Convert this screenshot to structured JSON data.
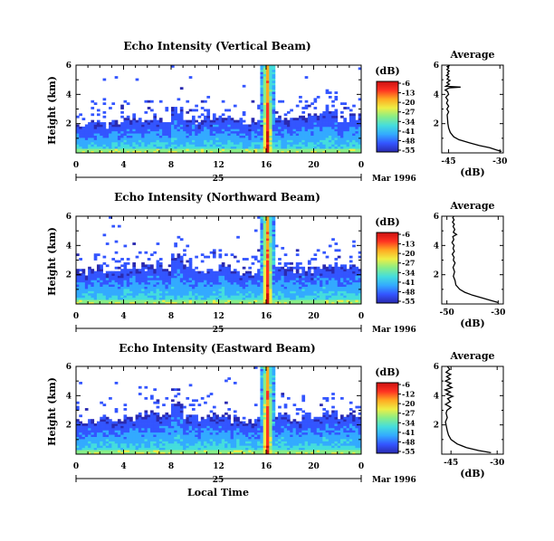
{
  "colormap": [
    "#2a2ab0",
    "#3355ff",
    "#33aaff",
    "#44dddd",
    "#88ee88",
    "#eeee44",
    "#ffaa22",
    "#ff3322",
    "#cc1111"
  ],
  "x_axis": {
    "label": "Local Time",
    "date_label": "Mar 1996",
    "day_label": "25"
  },
  "chart_data": [
    {
      "type": "heatmap",
      "title": "Echo Intensity (Vertical Beam)",
      "ylabel": "Height (km)",
      "xlim": [
        0,
        24
      ],
      "ylim": [
        0,
        6
      ],
      "xticks": [
        "0",
        "4",
        "8",
        "12",
        "16",
        "20",
        "0"
      ],
      "yticks": [
        2,
        4,
        6
      ],
      "colorbar": {
        "unit": "(dB)",
        "ticks": [
          "-6",
          "-13",
          "-20",
          "-27",
          "-34",
          "-41",
          "-48",
          "-55"
        ],
        "range": [
          -55,
          -6
        ]
      },
      "profile": {
        "type": "line",
        "title": "Average",
        "xlabel": "(dB)",
        "xticks": [
          "-45",
          "-30"
        ],
        "xlim": [
          -47,
          -29
        ],
        "ylim": [
          0,
          6
        ],
        "yticks": [
          2,
          4,
          6
        ],
        "x": [
          -29.5,
          -31,
          -33,
          -36,
          -39,
          -42,
          -43.5,
          -44.5,
          -45,
          -45.2,
          -45.3,
          -45.4,
          -45,
          -45.5,
          -45,
          -45.6,
          -45.2,
          -45.8,
          -45,
          -45.3,
          -46,
          -44.8,
          -41.5,
          -45.8,
          -44.8,
          -45.5,
          -44.6,
          -45.4,
          -44.9,
          -45.6,
          -45,
          -45.3,
          -44.8,
          -45.5,
          -45,
          -45.4,
          -44.9,
          -45.2
        ],
        "y": [
          0.1,
          0.2,
          0.35,
          0.5,
          0.7,
          0.9,
          1.1,
          1.4,
          1.7,
          2.0,
          2.3,
          2.6,
          2.8,
          3.0,
          3.2,
          3.4,
          3.6,
          3.8,
          4.0,
          4.2,
          4.3,
          4.45,
          4.5,
          4.55,
          4.7,
          4.8,
          4.95,
          5.05,
          5.2,
          5.3,
          5.4,
          5.5,
          5.6,
          5.7,
          5.8,
          5.9,
          5.95,
          6.0
        ]
      },
      "layer_top": [
        1.9,
        2.0,
        1.9,
        2.1,
        2.4,
        2.2,
        2.3,
        2.2,
        3.0,
        2.4,
        2.2,
        2.3,
        2.4,
        2.2,
        2.1,
        2.2,
        2.5,
        2.3,
        2.6,
        2.5,
        2.6,
        2.8,
        2.3,
        2.5
      ],
      "spike": {
        "x": 16.1,
        "width": 0.45,
        "peak": -8
      }
    },
    {
      "type": "heatmap",
      "title": "Echo Intensity (Northward Beam)",
      "ylabel": "Height (km)",
      "xlim": [
        0,
        24
      ],
      "ylim": [
        0,
        6
      ],
      "xticks": [
        "0",
        "4",
        "8",
        "12",
        "16",
        "20",
        "0"
      ],
      "yticks": [
        2,
        4,
        6
      ],
      "colorbar": {
        "unit": "(dB)",
        "ticks": [
          "-6",
          "-13",
          "-20",
          "-27",
          "-34",
          "-41",
          "-48",
          "-55"
        ],
        "range": [
          -55,
          -6
        ]
      },
      "profile": {
        "type": "line",
        "title": "Average",
        "xlabel": "(dB)",
        "xticks": [
          "-50",
          "-30"
        ],
        "xlim": [
          -52,
          -28
        ],
        "ylim": [
          0,
          6
        ],
        "yticks": [
          2,
          4,
          6
        ],
        "x": [
          -30,
          -33,
          -36,
          -40,
          -43,
          -45,
          -46.5,
          -46.8,
          -47.5,
          -47,
          -47.6,
          -46.8,
          -47.5,
          -47.2,
          -47.9,
          -47.1,
          -47.6,
          -47.2,
          -48,
          -47.3,
          -47.7,
          -46.2,
          -47.5,
          -46.9,
          -47.6,
          -47.1,
          -47.8,
          -47.2,
          -47.7,
          -47.3
        ],
        "y": [
          0.1,
          0.25,
          0.4,
          0.6,
          0.8,
          1.0,
          1.3,
          1.6,
          1.9,
          2.2,
          2.5,
          2.8,
          3.0,
          3.2,
          3.4,
          3.6,
          3.8,
          4.0,
          4.2,
          4.4,
          4.6,
          4.75,
          4.9,
          5.1,
          5.3,
          5.45,
          5.6,
          5.75,
          5.9,
          6.0
        ]
      },
      "layer_top": [
        2.1,
        2.4,
        2.3,
        2.1,
        2.6,
        2.4,
        2.6,
        2.5,
        3.3,
        2.6,
        2.3,
        2.5,
        2.6,
        2.2,
        2.1,
        2.2,
        2.6,
        2.4,
        2.3,
        2.4,
        2.5,
        2.6,
        2.4,
        2.5
      ],
      "spike": {
        "x": 16.1,
        "width": 0.45,
        "peak": -8
      }
    },
    {
      "type": "heatmap",
      "title": "Echo Intensity (Eastward Beam)",
      "ylabel": "Height (km)",
      "xlim": [
        0,
        24
      ],
      "ylim": [
        0,
        6
      ],
      "xticks": [
        "0",
        "4",
        "8",
        "12",
        "16",
        "20",
        "0"
      ],
      "yticks": [
        2,
        4,
        6
      ],
      "colorbar": {
        "unit": "(dB)",
        "ticks": [
          "-6",
          "-12",
          "-20",
          "-27",
          "-34",
          "-41",
          "-48",
          "-55"
        ],
        "range": [
          -55,
          -6
        ]
      },
      "profile": {
        "type": "line",
        "title": "Average",
        "xlabel": "(dB)",
        "xticks": [
          "-45",
          "-30"
        ],
        "xlim": [
          -48,
          -28
        ],
        "ylim": [
          0,
          6
        ],
        "yticks": [
          2,
          4,
          6
        ],
        "x": [
          -32,
          -36,
          -40,
          -43,
          -45,
          -45.8,
          -46.2,
          -46.5,
          -46.8,
          -46.2,
          -46.6,
          -46.3,
          -45,
          -46.8,
          -45.2,
          -46.1,
          -44.4,
          -46.5,
          -45.2,
          -46.9,
          -44.7,
          -46.2,
          -45,
          -46.8,
          -45.3,
          -46.4,
          -45.1,
          -46.6,
          -45.4,
          -46.2
        ],
        "y": [
          0.1,
          0.25,
          0.45,
          0.7,
          1.0,
          1.3,
          1.6,
          1.9,
          2.2,
          2.5,
          2.8,
          3.0,
          3.2,
          3.4,
          3.6,
          3.8,
          3.95,
          4.1,
          4.25,
          4.4,
          4.55,
          4.7,
          4.85,
          5.0,
          5.15,
          5.3,
          5.45,
          5.6,
          5.8,
          6.0
        ]
      },
      "layer_top": [
        2.2,
        2.4,
        2.6,
        2.3,
        2.5,
        2.7,
        2.8,
        2.6,
        3.4,
        2.7,
        2.4,
        2.6,
        2.7,
        2.3,
        2.2,
        2.3,
        2.8,
        2.7,
        2.4,
        2.6,
        2.7,
        2.9,
        2.6,
        2.8
      ],
      "spike": {
        "x": 16.1,
        "width": 0.45,
        "peak": -8
      }
    }
  ]
}
